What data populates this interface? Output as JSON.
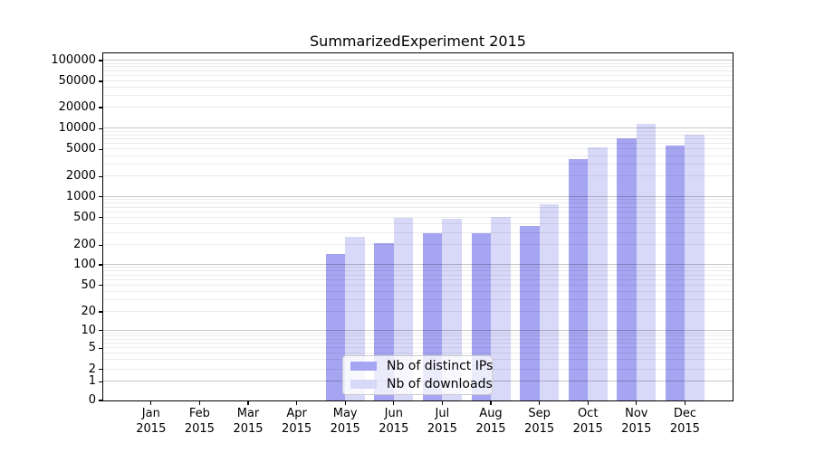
{
  "chart_data": {
    "type": "bar",
    "title": "SummarizedExperiment 2015",
    "categories": [
      "Jan",
      "Feb",
      "Mar",
      "Apr",
      "May",
      "Jun",
      "Jul",
      "Aug",
      "Sep",
      "Oct",
      "Nov",
      "Dec"
    ],
    "year_label": "2015",
    "series": [
      {
        "name": "Nb of distinct IPs",
        "color": "#a5a5f2",
        "values": [
          0,
          0,
          0,
          0,
          145,
          215,
          295,
          297,
          380,
          3600,
          7300,
          5640
        ]
      },
      {
        "name": "Nb of downloads",
        "color": "#d8d8f8",
        "values": [
          0,
          0,
          0,
          0,
          265,
          500,
          475,
          515,
          785,
          5400,
          11600,
          8200
        ]
      }
    ],
    "y_ticks": [
      0,
      1,
      2,
      5,
      10,
      20,
      50,
      100,
      200,
      500,
      1000,
      2000,
      5000,
      10000,
      20000,
      50000,
      100000
    ],
    "y_scale": "symlog",
    "ylim": [
      0,
      130000
    ],
    "grid": "both",
    "grid_major_at_powers_of_ten": true,
    "legend_position": "lower center",
    "axis_color": "#000000",
    "background_color": "#ffffff"
  }
}
